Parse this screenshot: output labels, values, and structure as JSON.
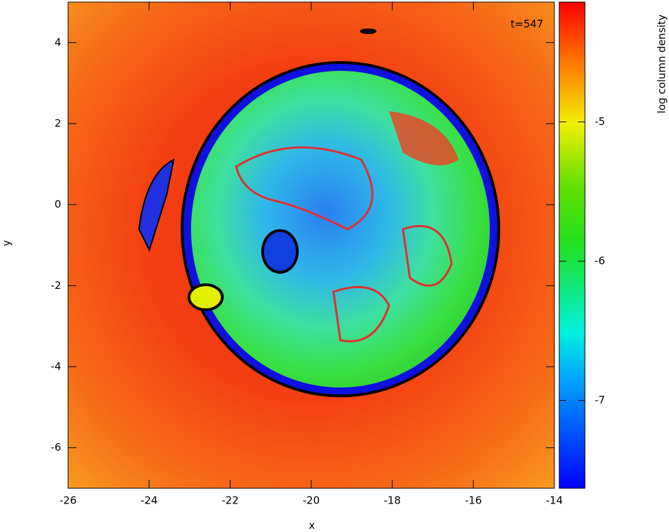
{
  "chart_data": {
    "type": "image",
    "annotation": "t=547",
    "x_label": "x",
    "y_label": "y",
    "xlim": [
      -26,
      -14
    ],
    "xticks": [
      -26,
      -24,
      -22,
      -20,
      -18,
      -16,
      -14
    ],
    "ylim": [
      -7,
      5
    ],
    "yticks": [
      -6,
      -4,
      -2,
      0,
      2,
      4
    ],
    "colorbar": {
      "label": "log column density",
      "lim": [
        -7.63,
        -4.14
      ],
      "ticks": [
        -7,
        -6,
        -5
      ]
    }
  }
}
